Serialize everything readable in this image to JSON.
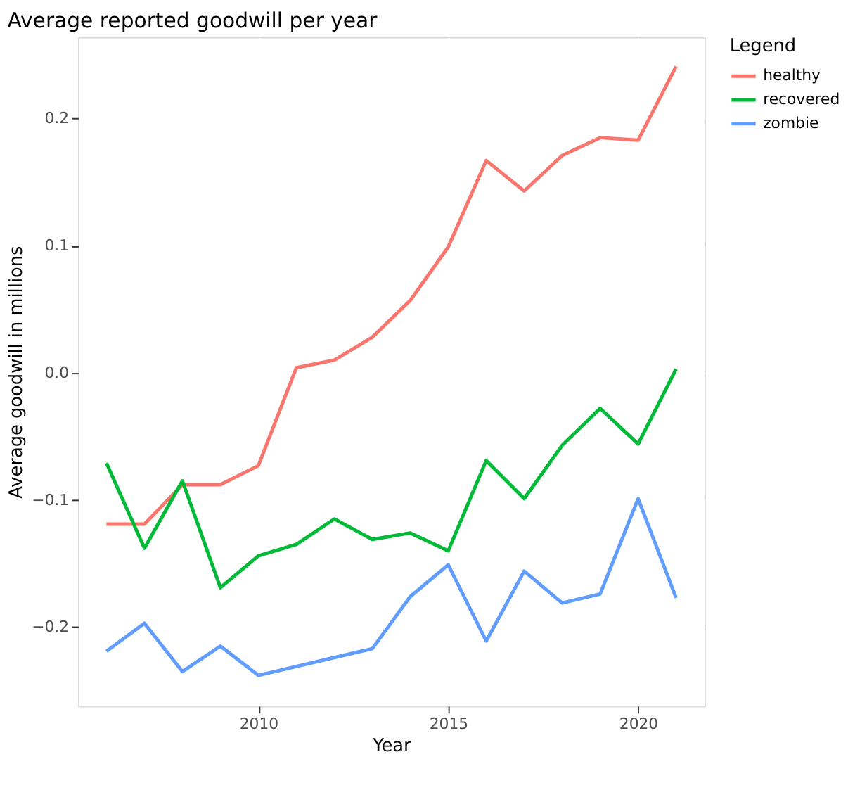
{
  "chart_data": {
    "type": "line",
    "title": "Average reported goodwill per year",
    "xlabel": "Year",
    "ylabel": "Average goodwill in millions",
    "legend_title": "Legend",
    "legend": "right",
    "grid": true,
    "line_style": "solid",
    "x": [
      2006,
      2007,
      2008,
      2009,
      2010,
      2011,
      2012,
      2013,
      2014,
      2015,
      2016,
      2017,
      2018,
      2019,
      2020,
      2021
    ],
    "xlim": [
      2005.25,
      2021.75
    ],
    "xticks": [
      2010,
      2015,
      2020
    ],
    "ylim": [
      -0.262,
      0.264
    ],
    "yticks": [
      -0.2,
      -0.1,
      {
        "value": 0,
        "label": "0.0"
      },
      0.1,
      0.2
    ],
    "series": [
      {
        "name": "healthy",
        "color": "#f8766d",
        "values": [
          -0.119,
          -0.119,
          -0.088,
          -0.088,
          -0.073,
          0.004,
          0.01,
          0.028,
          0.057,
          0.099,
          0.167,
          0.143,
          0.171,
          0.185,
          0.183,
          0.241
        ]
      },
      {
        "name": "recovered",
        "color": "#00ba38",
        "values": [
          -0.071,
          -0.138,
          -0.085,
          -0.169,
          -0.144,
          -0.135,
          -0.115,
          -0.131,
          -0.126,
          -0.14,
          -0.069,
          -0.099,
          -0.057,
          -0.028,
          -0.056,
          0.003
        ]
      },
      {
        "name": "zombie",
        "color": "#619cff",
        "values": [
          -0.219,
          -0.197,
          -0.235,
          -0.215,
          -0.238,
          -0.231,
          -0.224,
          -0.217,
          -0.176,
          -0.151,
          -0.211,
          -0.156,
          -0.181,
          -0.174,
          -0.099,
          -0.177
        ]
      }
    ]
  }
}
